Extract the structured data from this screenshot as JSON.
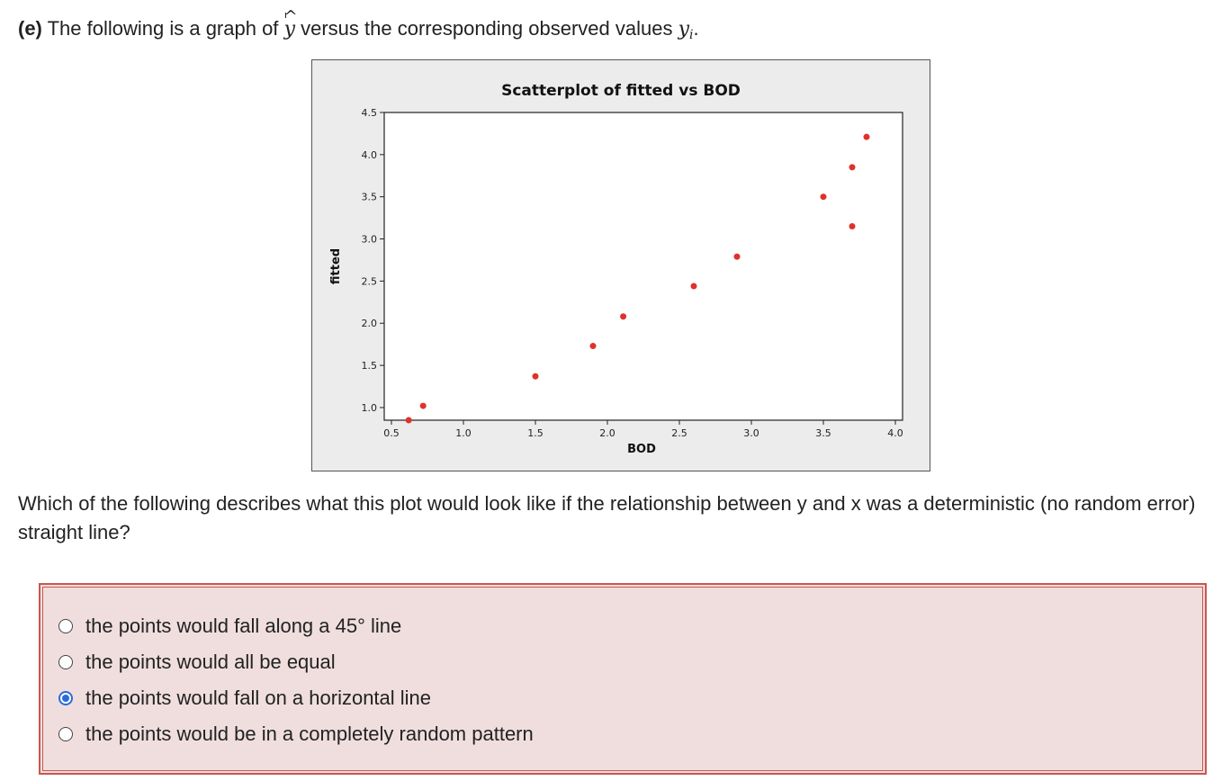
{
  "question": {
    "part_label": "(e)",
    "text_before": "The following is a graph of",
    "yhat_symbol": "y",
    "hat_mark": "^",
    "text_middle": "versus the corresponding observed values",
    "y_obs": "y",
    "y_sub": "i",
    "period": "."
  },
  "prompt": {
    "text": "Which of the following describes what this plot would look like if the relationship between y and x was a deterministic (no random error) straight line?"
  },
  "options": [
    {
      "label": "the points would fall along a 45° line",
      "selected": false
    },
    {
      "label": "the points would all be equal",
      "selected": false
    },
    {
      "label": "the points would fall on a horizontal line",
      "selected": true
    },
    {
      "label": "the points would be in a completely random pattern",
      "selected": false
    }
  ],
  "colors": {
    "point": "#e0312b",
    "selected_radio": "#2a6bd9",
    "answer_border": "#c9574f",
    "answer_bg": "#f0dede"
  },
  "chart_data": {
    "type": "scatter",
    "title": "Scatterplot of fitted vs BOD",
    "xlabel": "BOD",
    "ylabel": "fitted",
    "xlim": [
      0.45,
      4.05
    ],
    "ylim": [
      0.85,
      4.5
    ],
    "xticks": [
      0.5,
      1.0,
      1.5,
      2.0,
      2.5,
      3.0,
      3.5,
      4.0
    ],
    "xtick_labels": [
      "0.5",
      "1.0",
      "1.5",
      "2.0",
      "2.5",
      "3.0",
      "3.5",
      "4.0"
    ],
    "yticks": [
      1.0,
      1.5,
      2.0,
      2.5,
      3.0,
      3.5,
      4.0,
      4.5
    ],
    "ytick_labels": [
      "1.0",
      "1.5",
      "2.0",
      "2.5",
      "3.0",
      "3.5",
      "4.0",
      "4.5"
    ],
    "grid": false,
    "x": [
      0.62,
      0.72,
      1.5,
      1.9,
      2.11,
      2.6,
      2.9,
      3.5,
      3.7,
      3.7,
      3.8
    ],
    "y": [
      0.85,
      1.02,
      1.37,
      1.73,
      2.08,
      2.44,
      2.79,
      3.5,
      3.85,
      3.15,
      4.21
    ]
  }
}
